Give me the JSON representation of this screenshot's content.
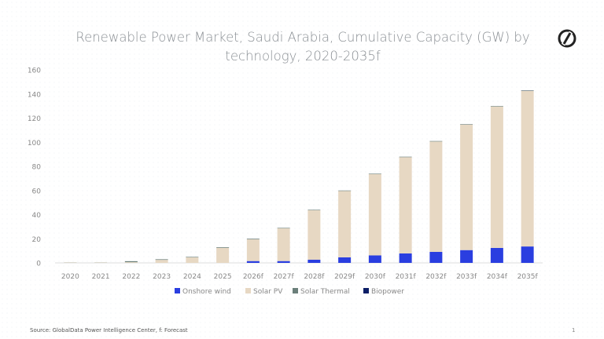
{
  "chart_data": {
    "type": "bar",
    "stacked": true,
    "title": "Renewable Power Market, Saudi Arabia, Cumulative Capacity (GW) by technology, 2020-2035f",
    "xlabel": "",
    "ylabel": "",
    "ylim": [
      0,
      160
    ],
    "yticks": [
      0,
      20,
      40,
      60,
      80,
      100,
      120,
      140,
      160
    ],
    "grid": false,
    "legend_position": "bottom",
    "categories": [
      "2020",
      "2021",
      "2022",
      "2023",
      "2024",
      "2025",
      "2026f",
      "2027f",
      "2028f",
      "2029f",
      "2030f",
      "2031f",
      "2032f",
      "2033f",
      "2034f",
      "2035f"
    ],
    "series": [
      {
        "name": "Onshore wind",
        "color": "#2a3ee0",
        "values": [
          0,
          0,
          0,
          0,
          0,
          0,
          1.5,
          1.5,
          2.6,
          4.6,
          6.2,
          7.8,
          9.1,
          10.6,
          12.4,
          13.6
        ]
      },
      {
        "name": "Solar PV",
        "color": "#e7d8c3",
        "values": [
          0.3,
          0.3,
          0.6,
          2.5,
          4.6,
          12.5,
          18.0,
          27.1,
          41.0,
          55.0,
          67.4,
          79.8,
          91.5,
          104.0,
          117.2,
          129.0
        ]
      },
      {
        "name": "Solar Thermal",
        "color": "#6b7f7a",
        "values": [
          0.1,
          0.1,
          0.8,
          0.5,
          0.4,
          0.5,
          0.5,
          0.4,
          0.4,
          0.4,
          0.4,
          0.4,
          0.4,
          0.4,
          0.4,
          0.4
        ]
      },
      {
        "name": "Biopower",
        "color": "#0c1e66",
        "values": [
          0,
          0,
          0,
          0,
          0,
          0,
          0,
          0,
          0,
          0,
          0,
          0,
          0,
          0,
          0,
          0.1
        ]
      }
    ]
  },
  "footer": {
    "source": "Source: GlobalData Power Intelligence Center, f: Forecast",
    "page": "1"
  },
  "logo": {
    "icon": "globaldata-logo-icon"
  }
}
